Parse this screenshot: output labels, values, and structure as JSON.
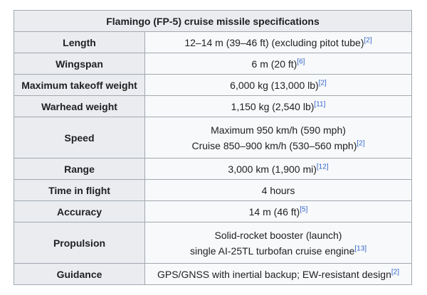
{
  "title": "Flamingo (FP-5) cruise missile specifications",
  "rows": [
    {
      "label": "Length",
      "lines": [
        {
          "text": "12–14 m (39–46 ft) (excluding pitot tube)",
          "ref": "[2]"
        }
      ]
    },
    {
      "label": "Wingspan",
      "lines": [
        {
          "text": "6 m (20 ft)",
          "ref": "[6]"
        }
      ]
    },
    {
      "label": "Maximum takeoff weight",
      "lines": [
        {
          "text": "6,000 kg (13,000 lb)",
          "ref": "[2]"
        }
      ]
    },
    {
      "label": "Warhead weight",
      "lines": [
        {
          "text": "1,150 kg (2,540 lb)",
          "ref": "[11]"
        }
      ]
    },
    {
      "label": "Speed",
      "lines": [
        {
          "text": "Maximum 950 km/h (590 mph)",
          "ref": ""
        },
        {
          "text": "Cruise 850–900 km/h (530–560 mph)",
          "ref": "[2]"
        }
      ]
    },
    {
      "label": "Range",
      "lines": [
        {
          "text": "3,000 km (1,900 mi)",
          "ref": "[12]"
        }
      ]
    },
    {
      "label": "Time in flight",
      "lines": [
        {
          "text": "4 hours",
          "ref": ""
        }
      ]
    },
    {
      "label": "Accuracy",
      "lines": [
        {
          "text": "14 m (46 ft)",
          "ref": "[5]"
        }
      ]
    },
    {
      "label": "Propulsion",
      "lines": [
        {
          "text": "Solid-rocket booster (launch)",
          "ref": ""
        },
        {
          "text": "single AI-25TL turbofan cruise engine",
          "ref": "[13]"
        }
      ]
    },
    {
      "label": "Guidance",
      "lines": [
        {
          "text": "GPS/GNSS with inertial backup; EW-resistant design",
          "ref": "[2]"
        }
      ]
    }
  ]
}
